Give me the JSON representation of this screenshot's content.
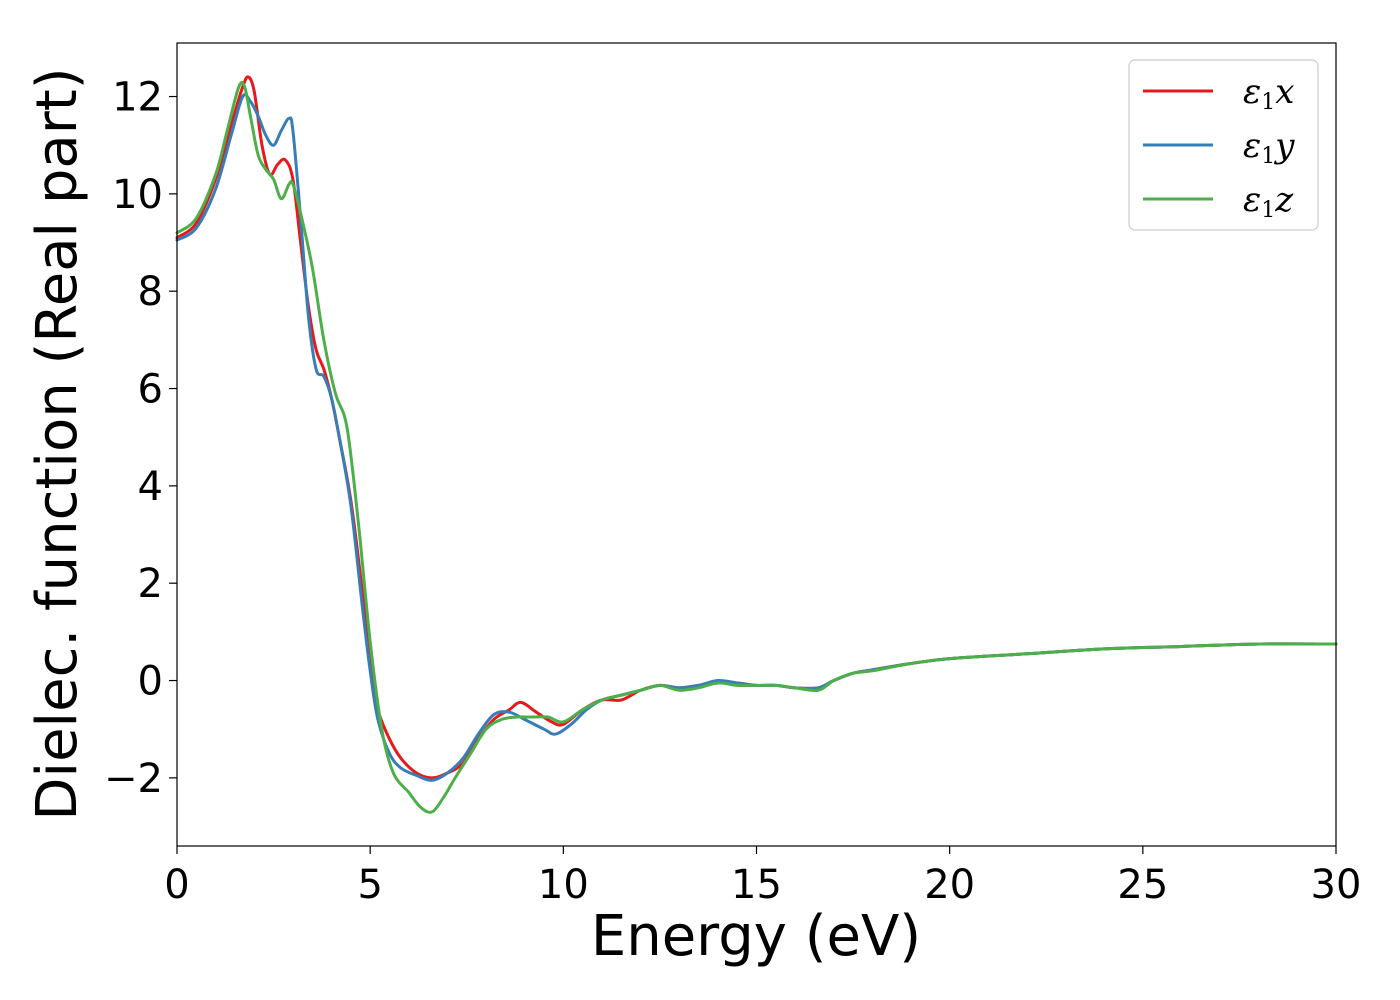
{
  "chart_data": {
    "type": "line",
    "title": "",
    "xlabel": "Energy (eV)",
    "ylabel": "Dielec. function (Real part)",
    "xlim": [
      0,
      30
    ],
    "ylim": [
      -3.4,
      13.1
    ],
    "xticks": [
      0,
      5,
      10,
      15,
      20,
      25,
      30
    ],
    "yticks": [
      -2,
      0,
      2,
      4,
      6,
      8,
      10,
      12
    ],
    "ytick_labels": [
      "−2",
      "0",
      "2",
      "4",
      "6",
      "8",
      "10",
      "12"
    ],
    "grid": false,
    "legend_position": "top-right",
    "series": [
      {
        "name": "ε1x",
        "label_main": "ε",
        "label_sub": "1",
        "label_tail": "x",
        "color": "#e41a1c",
        "x": [
          0,
          0.5,
          1.0,
          1.4,
          1.7,
          1.85,
          2.0,
          2.2,
          2.4,
          2.6,
          2.8,
          3.0,
          3.2,
          3.4,
          3.6,
          3.8,
          4.0,
          4.2,
          4.5,
          4.8,
          5.0,
          5.2,
          5.5,
          5.8,
          6.2,
          6.6,
          7.0,
          7.4,
          7.8,
          8.2,
          8.6,
          8.9,
          9.3,
          9.7,
          10.0,
          10.5,
          11.0,
          11.5,
          12.0,
          12.5,
          13.0,
          13.5,
          14.0,
          14.5,
          15.0,
          15.5,
          16.0,
          16.6,
          17.0,
          17.5,
          18.0,
          19.0,
          20.0,
          22.0,
          24.0,
          26.0,
          28.0,
          30.0
        ],
        "values": [
          9.1,
          9.4,
          10.3,
          11.4,
          12.2,
          12.4,
          12.1,
          11.0,
          10.4,
          10.6,
          10.7,
          10.3,
          9.0,
          7.7,
          6.8,
          6.4,
          5.8,
          5.0,
          3.7,
          1.8,
          0.3,
          -0.6,
          -1.2,
          -1.6,
          -1.9,
          -2.0,
          -1.9,
          -1.7,
          -1.2,
          -0.8,
          -0.6,
          -0.45,
          -0.65,
          -0.85,
          -0.9,
          -0.6,
          -0.4,
          -0.4,
          -0.2,
          -0.1,
          -0.15,
          -0.1,
          -0.05,
          -0.05,
          -0.1,
          -0.1,
          -0.15,
          -0.15,
          0.0,
          0.15,
          0.22,
          0.35,
          0.45,
          0.55,
          0.65,
          0.7,
          0.75,
          0.75
        ]
      },
      {
        "name": "ε1y",
        "label_main": "ε",
        "label_sub": "1",
        "label_tail": "y",
        "color": "#377eb8",
        "x": [
          0,
          0.5,
          1.0,
          1.4,
          1.7,
          1.9,
          2.1,
          2.3,
          2.5,
          2.7,
          2.9,
          3.0,
          3.2,
          3.4,
          3.6,
          3.8,
          4.0,
          4.2,
          4.5,
          4.8,
          5.0,
          5.2,
          5.5,
          5.8,
          6.2,
          6.6,
          7.0,
          7.4,
          7.8,
          8.2,
          8.6,
          9.0,
          9.5,
          9.8,
          10.2,
          10.6,
          11.0,
          11.5,
          12.0,
          12.5,
          13.0,
          13.5,
          14.0,
          14.5,
          15.0,
          15.5,
          16.0,
          16.6,
          17.0,
          17.5,
          18.0,
          19.0,
          20.0,
          22.0,
          24.0,
          26.0,
          28.0,
          30.0
        ],
        "values": [
          9.05,
          9.3,
          10.1,
          11.2,
          12.0,
          11.9,
          11.6,
          11.2,
          11.0,
          11.3,
          11.55,
          11.3,
          9.5,
          7.5,
          6.4,
          6.25,
          5.8,
          5.0,
          3.6,
          1.5,
          0.2,
          -0.8,
          -1.5,
          -1.8,
          -1.95,
          -2.05,
          -1.9,
          -1.6,
          -1.1,
          -0.7,
          -0.65,
          -0.8,
          -1.0,
          -1.1,
          -0.9,
          -0.6,
          -0.4,
          -0.3,
          -0.2,
          -0.1,
          -0.15,
          -0.1,
          0.0,
          -0.05,
          -0.1,
          -0.1,
          -0.15,
          -0.15,
          0.0,
          0.15,
          0.22,
          0.35,
          0.45,
          0.55,
          0.65,
          0.7,
          0.75,
          0.75
        ]
      },
      {
        "name": "ε1z",
        "label_main": "ε",
        "label_sub": "1",
        "label_tail": "z",
        "color": "#4daf4a",
        "x": [
          0,
          0.5,
          1.0,
          1.3,
          1.6,
          1.75,
          1.9,
          2.1,
          2.3,
          2.5,
          2.7,
          2.9,
          3.0,
          3.2,
          3.5,
          3.8,
          4.1,
          4.4,
          4.7,
          5.0,
          5.3,
          5.6,
          6.0,
          6.3,
          6.6,
          6.9,
          7.2,
          7.6,
          8.0,
          8.4,
          8.8,
          9.2,
          9.6,
          10.0,
          10.5,
          11.0,
          11.5,
          12.0,
          12.5,
          13.0,
          13.5,
          14.0,
          14.5,
          15.0,
          15.5,
          16.0,
          16.6,
          17.0,
          17.5,
          18.0,
          19.0,
          20.0,
          22.0,
          24.0,
          26.0,
          28.0,
          30.0
        ],
        "values": [
          9.2,
          9.5,
          10.4,
          11.3,
          12.2,
          12.2,
          11.6,
          10.8,
          10.5,
          10.3,
          9.9,
          10.2,
          10.2,
          9.6,
          8.5,
          7.0,
          5.9,
          5.2,
          3.2,
          0.8,
          -1.0,
          -1.9,
          -2.3,
          -2.6,
          -2.7,
          -2.4,
          -2.0,
          -1.5,
          -1.0,
          -0.8,
          -0.75,
          -0.75,
          -0.75,
          -0.85,
          -0.6,
          -0.4,
          -0.3,
          -0.2,
          -0.1,
          -0.2,
          -0.15,
          -0.05,
          -0.1,
          -0.1,
          -0.1,
          -0.15,
          -0.2,
          0.0,
          0.15,
          0.2,
          0.35,
          0.45,
          0.55,
          0.65,
          0.7,
          0.75,
          0.75
        ]
      }
    ]
  }
}
